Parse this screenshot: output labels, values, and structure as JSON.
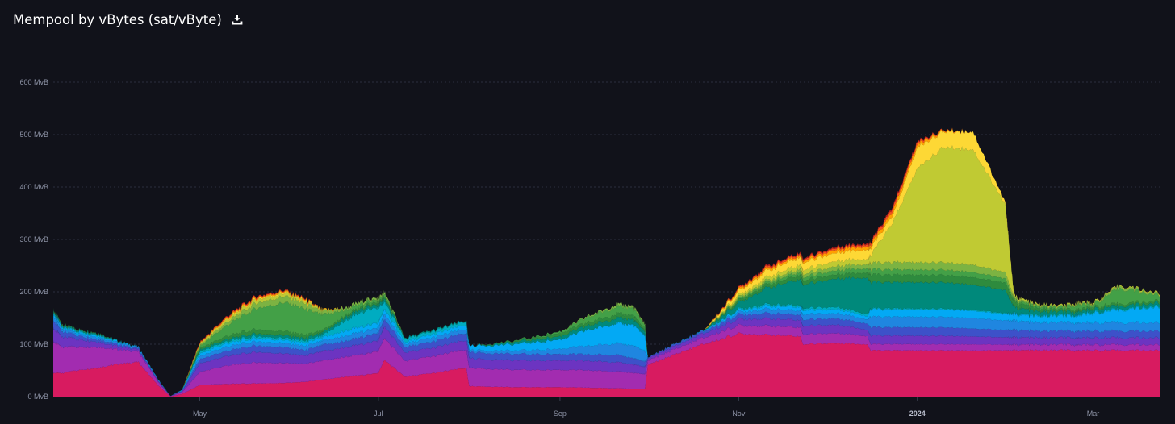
{
  "header": {
    "title": "Mempool by vBytes (sat/vByte)",
    "download_icon": "download-icon"
  },
  "chart_data": {
    "type": "area",
    "title": "Mempool by vBytes (sat/vByte)",
    "xlabel": "",
    "ylabel": "",
    "stacked": true,
    "grid": true,
    "legend": "none",
    "y_unit": "MvB",
    "ylim": [
      0,
      600
    ],
    "yticks": [
      0,
      100,
      200,
      300,
      400,
      500,
      600
    ],
    "ytick_labels": [
      "0 MvB",
      "100 MvB",
      "200 MvB",
      "300 MvB",
      "400 MvB",
      "500 MvB",
      "600 MvB"
    ],
    "xlim": [
      "2023-03-12",
      "2024-03-24"
    ],
    "xticks": [
      {
        "date": "2023-05-01",
        "label": "May",
        "bold": false
      },
      {
        "date": "2023-07-01",
        "label": "Jul",
        "bold": false
      },
      {
        "date": "2023-09-01",
        "label": "Sep",
        "bold": false
      },
      {
        "date": "2023-11-01",
        "label": "Nov",
        "bold": false
      },
      {
        "date": "2024-01-01",
        "label": "2024",
        "bold": true
      },
      {
        "date": "2024-03-01",
        "label": "Mar",
        "bold": false
      }
    ],
    "x": [
      "2023-03-12",
      "2023-03-15",
      "2023-03-20",
      "2023-03-27",
      "2023-04-03",
      "2023-04-10",
      "2023-04-17",
      "2023-04-21",
      "2023-04-25",
      "2023-05-01",
      "2023-05-10",
      "2023-05-20",
      "2023-05-30",
      "2023-06-06",
      "2023-06-12",
      "2023-06-20",
      "2023-06-27",
      "2023-07-01",
      "2023-07-03",
      "2023-07-10",
      "2023-07-20",
      "2023-07-31",
      "2023-08-01",
      "2023-08-15",
      "2023-09-01",
      "2023-09-10",
      "2023-09-20",
      "2023-09-26",
      "2023-09-30",
      "2023-10-01",
      "2023-10-10",
      "2023-10-20",
      "2023-11-01",
      "2023-11-10",
      "2023-11-22",
      "2023-11-23",
      "2023-12-05",
      "2023-12-15",
      "2023-12-16",
      "2023-12-24",
      "2024-01-01",
      "2024-01-10",
      "2024-01-20",
      "2024-01-31",
      "2024-02-03",
      "2024-02-10",
      "2024-02-20",
      "2024-02-25",
      "2024-03-01",
      "2024-03-10",
      "2024-03-24"
    ],
    "series": [
      {
        "color": "#d81b60",
        "values": [
          45,
          45,
          50,
          55,
          62,
          66,
          20,
          0,
          5,
          22,
          24,
          25,
          26,
          28,
          32,
          38,
          42,
          45,
          70,
          38,
          45,
          55,
          20,
          18,
          18,
          17,
          16,
          15,
          15,
          60,
          80,
          100,
          120,
          118,
          115,
          100,
          102,
          100,
          88,
          88,
          88,
          88,
          88,
          88,
          88,
          88,
          88,
          88,
          88,
          88,
          88
        ]
      },
      {
        "color": "#a22cb0",
        "values": [
          60,
          50,
          45,
          40,
          28,
          20,
          6,
          1,
          3,
          25,
          35,
          40,
          38,
          34,
          36,
          38,
          40,
          42,
          42,
          30,
          32,
          35,
          35,
          33,
          33,
          33,
          32,
          30,
          28,
          8,
          10,
          12,
          16,
          17,
          17,
          19,
          19,
          16,
          12,
          12,
          12,
          12,
          12,
          11,
          11,
          11,
          11,
          11,
          11,
          11,
          11
        ]
      },
      {
        "color": "#6c34c1",
        "values": [
          25,
          20,
          15,
          10,
          6,
          4,
          2,
          0,
          2,
          16,
          18,
          20,
          18,
          16,
          18,
          18,
          20,
          20,
          22,
          16,
          16,
          18,
          18,
          18,
          18,
          18,
          18,
          16,
          14,
          4,
          6,
          8,
          12,
          14,
          14,
          16,
          16,
          12,
          16,
          16,
          16,
          16,
          15,
          14,
          14,
          13,
          13,
          13,
          13,
          13,
          13
        ]
      },
      {
        "color": "#3d51c9",
        "values": [
          15,
          10,
          7,
          5,
          4,
          2,
          1,
          0,
          1,
          8,
          10,
          12,
          12,
          10,
          12,
          12,
          14,
          14,
          14,
          10,
          12,
          14,
          12,
          12,
          12,
          12,
          14,
          12,
          10,
          2,
          3,
          4,
          8,
          10,
          10,
          12,
          12,
          12,
          16,
          16,
          16,
          16,
          15,
          14,
          14,
          13,
          13,
          13,
          13,
          13,
          13
        ]
      },
      {
        "color": "#1f86e0",
        "values": [
          8,
          5,
          4,
          4,
          3,
          2,
          1,
          0,
          1,
          6,
          8,
          8,
          8,
          8,
          8,
          10,
          10,
          10,
          10,
          6,
          8,
          8,
          4,
          6,
          10,
          16,
          22,
          24,
          20,
          0,
          1,
          1,
          5,
          8,
          8,
          10,
          10,
          8,
          20,
          20,
          20,
          20,
          20,
          18,
          18,
          16,
          16,
          16,
          16,
          16,
          16
        ]
      },
      {
        "color": "#03a9f4",
        "values": [
          5,
          3,
          3,
          3,
          2,
          1,
          1,
          0,
          1,
          5,
          6,
          6,
          6,
          6,
          6,
          10,
          10,
          10,
          10,
          4,
          6,
          8,
          8,
          12,
          18,
          30,
          38,
          40,
          30,
          0,
          0,
          1,
          4,
          6,
          7,
          8,
          8,
          6,
          14,
          14,
          14,
          14,
          14,
          12,
          12,
          12,
          12,
          14,
          18,
          24,
          30
        ]
      },
      {
        "color": "#00acc1",
        "values": [
          3,
          2,
          2,
          2,
          1,
          0,
          0,
          0,
          0,
          4,
          4,
          4,
          4,
          4,
          4,
          20,
          30,
          28,
          14,
          6,
          6,
          6,
          0,
          0,
          0,
          0,
          0,
          0,
          0,
          0,
          0,
          0,
          2,
          3,
          3,
          4,
          4,
          4,
          2,
          2,
          2,
          2,
          2,
          2,
          2,
          2,
          2,
          2,
          2,
          2,
          2
        ]
      },
      {
        "color": "#00897b",
        "values": [
          2,
          2,
          2,
          2,
          1,
          0,
          0,
          0,
          0,
          3,
          4,
          5,
          5,
          5,
          5,
          6,
          6,
          6,
          6,
          2,
          2,
          2,
          0,
          4,
          6,
          8,
          10,
          10,
          8,
          0,
          0,
          0,
          12,
          30,
          50,
          45,
          55,
          70,
          50,
          50,
          50,
          50,
          48,
          44,
          12,
          8,
          6,
          6,
          6,
          6,
          6
        ]
      },
      {
        "color": "#2e8b3e",
        "values": [
          2,
          2,
          1,
          1,
          0,
          0,
          0,
          0,
          0,
          3,
          6,
          8,
          8,
          6,
          4,
          4,
          4,
          4,
          4,
          0,
          0,
          0,
          0,
          2,
          6,
          6,
          8,
          8,
          4,
          0,
          0,
          0,
          4,
          6,
          8,
          8,
          8,
          10,
          14,
          14,
          14,
          14,
          14,
          14,
          10,
          6,
          4,
          4,
          4,
          4,
          4
        ]
      },
      {
        "color": "#43a047",
        "values": [
          0,
          0,
          0,
          0,
          0,
          0,
          0,
          0,
          0,
          4,
          20,
          40,
          55,
          50,
          30,
          10,
          6,
          5,
          5,
          0,
          0,
          0,
          0,
          0,
          3,
          10,
          14,
          14,
          8,
          0,
          0,
          0,
          3,
          4,
          6,
          6,
          8,
          8,
          10,
          10,
          10,
          10,
          10,
          8,
          4,
          4,
          4,
          10,
          4,
          30,
          10
        ]
      },
      {
        "color": "#7cb342",
        "values": [
          0,
          0,
          0,
          0,
          0,
          0,
          0,
          0,
          0,
          2,
          6,
          10,
          12,
          10,
          6,
          4,
          4,
          4,
          4,
          0,
          0,
          0,
          0,
          0,
          0,
          2,
          4,
          4,
          2,
          0,
          0,
          0,
          3,
          4,
          6,
          6,
          8,
          8,
          12,
          14,
          14,
          14,
          14,
          12,
          4,
          2,
          2,
          2,
          2,
          4,
          2
        ]
      },
      {
        "color": "#c0ca33",
        "values": [
          0,
          0,
          0,
          0,
          0,
          0,
          0,
          0,
          0,
          2,
          4,
          6,
          6,
          4,
          2,
          0,
          0,
          0,
          0,
          0,
          0,
          0,
          0,
          0,
          0,
          0,
          0,
          0,
          0,
          0,
          0,
          0,
          4,
          6,
          8,
          8,
          10,
          10,
          14,
          80,
          180,
          220,
          220,
          130,
          4,
          2,
          2,
          2,
          2,
          2,
          2
        ]
      },
      {
        "color": "#fdd835",
        "values": [
          0,
          0,
          0,
          0,
          0,
          0,
          0,
          0,
          0,
          1,
          2,
          2,
          2,
          2,
          1,
          0,
          0,
          0,
          0,
          0,
          0,
          0,
          0,
          0,
          0,
          0,
          0,
          0,
          0,
          0,
          0,
          0,
          8,
          12,
          14,
          14,
          16,
          18,
          14,
          14,
          40,
          30,
          34,
          4,
          0,
          0,
          0,
          0,
          0,
          0,
          0
        ]
      },
      {
        "color": "#ffa000",
        "values": [
          0,
          0,
          0,
          0,
          0,
          0,
          0,
          0,
          0,
          1,
          2,
          2,
          2,
          2,
          1,
          0,
          0,
          0,
          0,
          0,
          0,
          0,
          0,
          0,
          0,
          0,
          0,
          0,
          0,
          0,
          0,
          0,
          3,
          4,
          4,
          4,
          6,
          6,
          6,
          8,
          6,
          2,
          0,
          0,
          0,
          0,
          0,
          0,
          0,
          0,
          0
        ]
      },
      {
        "color": "#f4511e",
        "values": [
          0,
          0,
          0,
          0,
          0,
          0,
          0,
          0,
          0,
          1,
          2,
          2,
          1,
          1,
          0,
          0,
          0,
          0,
          0,
          0,
          0,
          0,
          0,
          0,
          0,
          0,
          0,
          0,
          0,
          0,
          0,
          0,
          2,
          3,
          3,
          3,
          3,
          4,
          4,
          6,
          4,
          1,
          0,
          0,
          0,
          0,
          0,
          0,
          0,
          0,
          0
        ]
      },
      {
        "color": "#b71c1c",
        "values": [
          0,
          0,
          0,
          0,
          0,
          0,
          0,
          0,
          0,
          1,
          1,
          1,
          1,
          1,
          0,
          0,
          0,
          0,
          0,
          0,
          0,
          0,
          0,
          0,
          0,
          0,
          0,
          0,
          0,
          0,
          0,
          0,
          1,
          2,
          2,
          2,
          2,
          2,
          2,
          3,
          2,
          0,
          0,
          0,
          0,
          0,
          0,
          0,
          0,
          0,
          0
        ]
      }
    ]
  }
}
